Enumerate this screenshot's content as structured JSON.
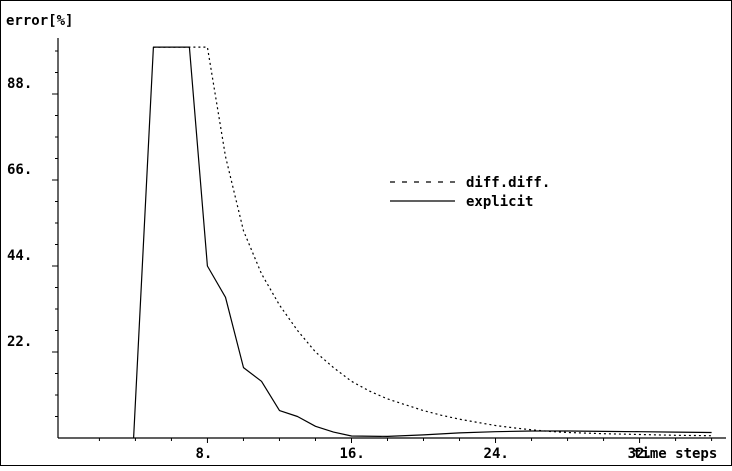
{
  "chart_data": {
    "type": "line",
    "ylabel": "error[%]",
    "xlabel": "time steps",
    "xlim": [
      -0.3,
      36.8
    ],
    "ylim": [
      0,
      110
    ],
    "x_ticks": [
      8,
      16,
      24,
      32
    ],
    "x_tick_labels": [
      "8.",
      "16.",
      "24.",
      "32."
    ],
    "y_ticks": [
      22,
      44,
      66,
      88
    ],
    "y_tick_labels": [
      "22.",
      "44.",
      "66.",
      "88."
    ],
    "grid": false,
    "legend_position": "center-right",
    "series": [
      {
        "name": "diff.diff.",
        "style": "dotted",
        "x": [
          5,
          6,
          7,
          8,
          9,
          10,
          11,
          12,
          13,
          14,
          15,
          16,
          17,
          18,
          19,
          20,
          21,
          22,
          23,
          24,
          25,
          26,
          27,
          28,
          30,
          32,
          34,
          36
        ],
        "y": [
          100,
          100,
          100,
          100,
          72,
          53,
          42,
          34,
          27.5,
          22,
          18,
          14.5,
          12,
          10,
          8.5,
          7,
          5.8,
          4.8,
          4,
          3.2,
          2.6,
          2.1,
          1.7,
          1.4,
          1.1,
          0.9,
          0.7,
          0.6
        ]
      },
      {
        "name": "explicit",
        "style": "solid",
        "x": [
          3.9,
          5,
          6,
          7,
          8,
          9,
          10,
          11,
          12,
          13,
          14,
          15,
          16,
          18,
          20,
          22,
          24,
          26,
          28,
          30,
          32,
          34,
          36
        ],
        "y": [
          0,
          100,
          100,
          100,
          44,
          36,
          18,
          14.5,
          7,
          5.5,
          3,
          1.5,
          0.5,
          0.4,
          0.8,
          1.3,
          1.6,
          1.8,
          1.8,
          1.7,
          1.6,
          1.5,
          1.4
        ]
      }
    ]
  }
}
